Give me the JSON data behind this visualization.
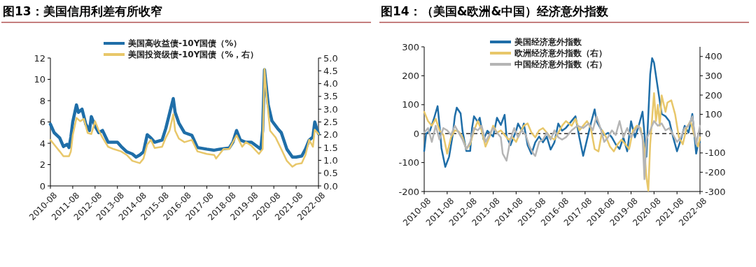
{
  "chart_data": [
    {
      "type": "line",
      "title": "图13：美国信用利差有所收窄",
      "legend": "top",
      "grid": false,
      "marker": "none",
      "line_style": "solid",
      "xlim": [
        "2010-08",
        "2022-08"
      ],
      "xticks": [
        "2010-08",
        "2011-08",
        "2012-08",
        "2013-08",
        "2014-08",
        "2015-08",
        "2016-08",
        "2017-08",
        "2018-08",
        "2019-08",
        "2020-08",
        "2021-08",
        "2022-08"
      ],
      "ylim": [
        0,
        12
      ],
      "yticks": [
        0,
        2,
        4,
        6,
        8,
        10,
        12
      ],
      "y2lim": [
        0,
        5
      ],
      "y2ticks": [
        {
          "value": 0,
          "label": "0.0"
        },
        {
          "value": 0.5,
          "label": "0.5"
        },
        {
          "value": 1,
          "label": "1.0"
        },
        {
          "value": 1.5,
          "label": "1.5"
        },
        {
          "value": 2,
          "label": "2.0"
        },
        {
          "value": 2.5,
          "label": "2.5"
        },
        {
          "value": 3,
          "label": "3.0"
        },
        {
          "value": 3.5,
          "label": "3.5"
        },
        {
          "value": 4,
          "label": "4.0"
        },
        {
          "value": 4.5,
          "label": "4.5"
        },
        {
          "value": 5,
          "label": "5.0"
        }
      ],
      "series": [
        {
          "name": "美国高收益债-10Y国债（%）",
          "color": "#1f6ea8",
          "x": [
            "2010-08",
            "2010-10",
            "2011-01",
            "2011-03",
            "2011-05",
            "2011-06",
            "2011-07",
            "2011-08",
            "2011-10",
            "2011-11",
            "2012-01",
            "2012-03",
            "2012-05",
            "2012-06",
            "2012-08",
            "2012-10",
            "2012-12",
            "2013-03",
            "2013-06",
            "2013-08",
            "2013-10",
            "2014-01",
            "2014-04",
            "2014-06",
            "2014-08",
            "2014-10",
            "2014-12",
            "2015-02",
            "2015-04",
            "2015-08",
            "2015-10",
            "2015-12",
            "2016-02",
            "2016-03",
            "2016-05",
            "2016-08",
            "2016-12",
            "2017-03",
            "2017-08",
            "2017-12",
            "2018-03",
            "2018-08",
            "2018-10",
            "2018-12",
            "2019-02",
            "2019-05",
            "2019-08",
            "2020-01",
            "2020-02",
            "2020-03",
            "2020-05",
            "2020-07",
            "2020-10",
            "2020-12",
            "2021-03",
            "2021-06",
            "2021-08",
            "2021-11",
            "2022-01",
            "2022-03",
            "2022-05",
            "2022-06",
            "2022-07",
            "2022-08"
          ],
          "values": [
            5.8,
            5.0,
            4.5,
            3.7,
            3.9,
            3.6,
            4.6,
            6.0,
            7.6,
            6.9,
            7.2,
            5.8,
            5.2,
            6.5,
            5.6,
            5.0,
            5.2,
            4.1,
            4.1,
            4.1,
            3.7,
            3.2,
            3.0,
            2.7,
            2.9,
            3.2,
            4.8,
            4.5,
            4.1,
            4.3,
            5.4,
            6.8,
            8.2,
            6.9,
            5.9,
            5.0,
            4.75,
            3.6,
            3.45,
            3.35,
            3.45,
            3.55,
            4.1,
            5.2,
            4.3,
            4.1,
            4.1,
            3.45,
            5.2,
            10.9,
            7.6,
            6.1,
            5.4,
            5.0,
            3.45,
            2.7,
            2.7,
            2.8,
            3.45,
            4.3,
            4.6,
            6.0,
            5.4,
            4.9
          ]
        },
        {
          "name": "美国投资级债-10Y国债（%，右）",
          "color": "#e8c76a",
          "axis": "y2",
          "x": [
            "2010-08",
            "2010-10",
            "2011-01",
            "2011-03",
            "2011-06",
            "2011-07",
            "2011-08",
            "2011-10",
            "2011-12",
            "2012-02",
            "2012-04",
            "2012-06",
            "2012-08",
            "2012-10",
            "2012-12",
            "2013-03",
            "2013-06",
            "2013-10",
            "2014-01",
            "2014-04",
            "2014-08",
            "2014-10",
            "2014-12",
            "2015-02",
            "2015-04",
            "2015-08",
            "2015-10",
            "2015-12",
            "2016-02",
            "2016-03",
            "2016-05",
            "2016-08",
            "2016-12",
            "2017-03",
            "2017-08",
            "2017-12",
            "2018-01",
            "2018-05",
            "2018-08",
            "2018-12",
            "2019-03",
            "2019-05",
            "2019-08",
            "2019-12",
            "2020-02",
            "2020-03",
            "2020-04",
            "2020-06",
            "2020-09",
            "2020-12",
            "2021-03",
            "2021-06",
            "2021-08",
            "2021-11",
            "2022-01",
            "2022-03",
            "2022-05",
            "2022-06",
            "2022-08"
          ],
          "values": [
            1.8,
            1.62,
            1.35,
            1.16,
            1.16,
            1.35,
            1.98,
            2.66,
            2.53,
            2.62,
            2.07,
            2.03,
            2.53,
            2.16,
            1.89,
            1.53,
            1.44,
            1.35,
            1.21,
            0.98,
            0.89,
            1.07,
            1.62,
            1.8,
            1.48,
            1.53,
            1.89,
            2.16,
            2.8,
            2.16,
            1.85,
            1.71,
            1.8,
            1.35,
            1.25,
            1.21,
            1.07,
            1.44,
            1.44,
            1.98,
            1.53,
            1.71,
            1.57,
            1.25,
            1.44,
            4.57,
            3.6,
            2.16,
            1.89,
            1.44,
            0.98,
            0.75,
            0.85,
            0.89,
            1.21,
            1.8,
            1.53,
            2.2,
            2.03
          ]
        }
      ]
    },
    {
      "type": "line",
      "title": "图14：（美国&欧洲&中国）经济意外指数",
      "legend": "top",
      "grid": false,
      "marker": "none",
      "line_style": "solid",
      "xlim": [
        "2010-08",
        "2022-08"
      ],
      "xticks": [
        "2010-08",
        "2011-08",
        "2012-08",
        "2013-08",
        "2014-08",
        "2015-08",
        "2016-08",
        "2017-08",
        "2018-08",
        "2019-08",
        "2020-08",
        "2021-08",
        "2022-08"
      ],
      "ylim": [
        -200,
        300
      ],
      "yticks": [
        -200,
        -100,
        0,
        100,
        200,
        300
      ],
      "y2lim": [
        -300,
        450
      ],
      "y2ticks": [
        -300,
        -200,
        -100,
        0,
        100,
        200,
        300,
        400
      ],
      "ref_lines": [
        {
          "axis": "y",
          "value": 0,
          "color": "#000000",
          "line_style": "dashed"
        }
      ],
      "series": [
        {
          "name": "美国经济意外指数",
          "color": "#1f6ea8",
          "x": [
            "2010-08",
            "2010-09",
            "2010-11",
            "2011-01",
            "2011-03",
            "2011-04",
            "2011-05",
            "2011-07",
            "2011-09",
            "2011-11",
            "2011-12",
            "2012-01",
            "2012-03",
            "2012-04",
            "2012-06",
            "2012-08",
            "2012-09",
            "2012-10",
            "2012-12",
            "2013-01",
            "2013-03",
            "2013-05",
            "2013-08",
            "2013-10",
            "2013-12",
            "2014-02",
            "2014-03",
            "2014-05",
            "2014-08",
            "2014-09",
            "2014-11",
            "2014-12",
            "2015-02",
            "2015-04",
            "2015-06",
            "2015-08",
            "2015-10",
            "2015-12",
            "2016-02",
            "2016-04",
            "2016-06",
            "2016-08",
            "2016-10",
            "2017-03",
            "2017-05",
            "2017-07",
            "2017-09",
            "2017-11",
            "2018-01",
            "2018-02",
            "2018-04",
            "2018-06",
            "2018-08",
            "2018-10",
            "2018-12",
            "2019-02",
            "2019-04",
            "2019-06",
            "2019-08",
            "2019-10",
            "2019-12",
            "2020-02",
            "2020-04",
            "2020-06",
            "2020-07",
            "2020-08",
            "2020-10",
            "2020-12",
            "2021-02",
            "2021-04",
            "2021-06",
            "2021-08",
            "2021-10",
            "2021-12",
            "2022-02",
            "2022-04",
            "2022-06",
            "2022-07",
            "2022-08"
          ],
          "values": [
            -60,
            0,
            10,
            50,
            95,
            30,
            -50,
            -115,
            -80,
            0,
            60,
            90,
            70,
            10,
            -60,
            -60,
            20,
            60,
            40,
            55,
            -20,
            10,
            -10,
            55,
            30,
            65,
            -10,
            -40,
            10,
            35,
            10,
            35,
            -40,
            -70,
            -30,
            -10,
            -30,
            -10,
            -55,
            -30,
            35,
            10,
            20,
            60,
            -13,
            -77,
            -21,
            35,
            84,
            43,
            19,
            -5,
            3,
            -13,
            -37,
            -53,
            -13,
            -61,
            43,
            -13,
            27,
            76,
            -80,
            205,
            261,
            245,
            156,
            68,
            60,
            43,
            -13,
            -61,
            -21,
            27,
            3,
            68,
            -69,
            -37,
            -29
          ]
        },
        {
          "name": "欧洲经济意外指数（右）",
          "color": "#e8c76a",
          "axis": "y2",
          "x": [
            "2010-08",
            "2010-10",
            "2010-12",
            "2011-02",
            "2011-04",
            "2011-06",
            "2011-08",
            "2011-10",
            "2011-12",
            "2012-02",
            "2012-04",
            "2012-06",
            "2012-08",
            "2012-10",
            "2012-12",
            "2013-02",
            "2013-04",
            "2013-06",
            "2013-08",
            "2013-10",
            "2013-12",
            "2014-02",
            "2014-04",
            "2014-06",
            "2014-08",
            "2014-10",
            "2014-12",
            "2015-02",
            "2015-04",
            "2015-06",
            "2015-08",
            "2015-10",
            "2015-12",
            "2016-02",
            "2016-04",
            "2016-06",
            "2016-08",
            "2016-10",
            "2017-01",
            "2017-03",
            "2017-05",
            "2017-07",
            "2017-09",
            "2017-11",
            "2018-01",
            "2018-03",
            "2018-05",
            "2018-07",
            "2018-09",
            "2018-11",
            "2019-01",
            "2019-03",
            "2019-05",
            "2019-07",
            "2019-09",
            "2019-11",
            "2020-01",
            "2020-03",
            "2020-04",
            "2020-05",
            "2020-06",
            "2020-08",
            "2020-09",
            "2020-10",
            "2020-11",
            "2020-12",
            "2021-02",
            "2021-03",
            "2021-05",
            "2021-07",
            "2021-09",
            "2021-11",
            "2022-01",
            "2022-03",
            "2022-05",
            "2022-07",
            "2022-08"
          ],
          "values": [
            113,
            65,
            41,
            77,
            17,
            -7,
            -104,
            -19,
            17,
            11,
            -19,
            -80,
            -55,
            17,
            65,
            17,
            -67,
            -19,
            41,
            5,
            17,
            -7,
            -31,
            -19,
            -43,
            5,
            41,
            53,
            5,
            -19,
            17,
            29,
            5,
            -19,
            -31,
            5,
            41,
            65,
            41,
            77,
            17,
            41,
            65,
            29,
            -80,
            -92,
            17,
            -19,
            -67,
            -92,
            -55,
            -31,
            -55,
            -80,
            17,
            41,
            29,
            -80,
            -224,
            -296,
            -55,
            210,
            65,
            149,
            41,
            198,
            113,
            161,
            173,
            101,
            -19,
            -55,
            29,
            65,
            -7,
            -67,
            -19
          ]
        },
        {
          "name": "中国经济意外指数（右）",
          "color": "#b5b5b5",
          "axis": "y2",
          "x": [
            "2010-08",
            "2010-10",
            "2010-12",
            "2011-02",
            "2011-04",
            "2011-06",
            "2011-08",
            "2011-10",
            "2011-12",
            "2012-02",
            "2012-04",
            "2012-06",
            "2012-08",
            "2012-10",
            "2012-12",
            "2013-02",
            "2013-04",
            "2013-06",
            "2013-08",
            "2013-10",
            "2013-12",
            "2014-01",
            "2014-03",
            "2014-05",
            "2014-07",
            "2014-09",
            "2014-11",
            "2015-01",
            "2015-03",
            "2015-05",
            "2015-06",
            "2015-08",
            "2015-10",
            "2015-12",
            "2016-02",
            "2016-04",
            "2016-06",
            "2016-08",
            "2016-10",
            "2017-01",
            "2017-04",
            "2017-07",
            "2017-10",
            "2017-12",
            "2018-02",
            "2018-04",
            "2018-06",
            "2018-08",
            "2018-10",
            "2018-12",
            "2019-02",
            "2019-04",
            "2019-06",
            "2019-08",
            "2019-10",
            "2019-12",
            "2020-02",
            "2020-03",
            "2020-04",
            "2020-06",
            "2020-08",
            "2020-10",
            "2020-12",
            "2021-02",
            "2021-04",
            "2021-06",
            "2021-08",
            "2021-10",
            "2021-12",
            "2022-02",
            "2022-04",
            "2022-06",
            "2022-08"
          ],
          "values": [
            5,
            29,
            -43,
            41,
            -31,
            29,
            17,
            -7,
            41,
            5,
            -31,
            -80,
            -43,
            29,
            17,
            41,
            -43,
            -7,
            29,
            5,
            -19,
            -104,
            -140,
            -31,
            29,
            -19,
            17,
            -7,
            -67,
            -104,
            -116,
            -43,
            -31,
            5,
            -31,
            17,
            -19,
            -31,
            -19,
            17,
            41,
            29,
            53,
            17,
            89,
            29,
            -43,
            -19,
            17,
            -7,
            65,
            -19,
            29,
            -19,
            17,
            41,
            -19,
            -236,
            -31,
            17,
            65,
            41,
            53,
            17,
            29,
            -7,
            -43,
            -19,
            29,
            41,
            89,
            -55,
            41
          ]
        }
      ]
    }
  ]
}
